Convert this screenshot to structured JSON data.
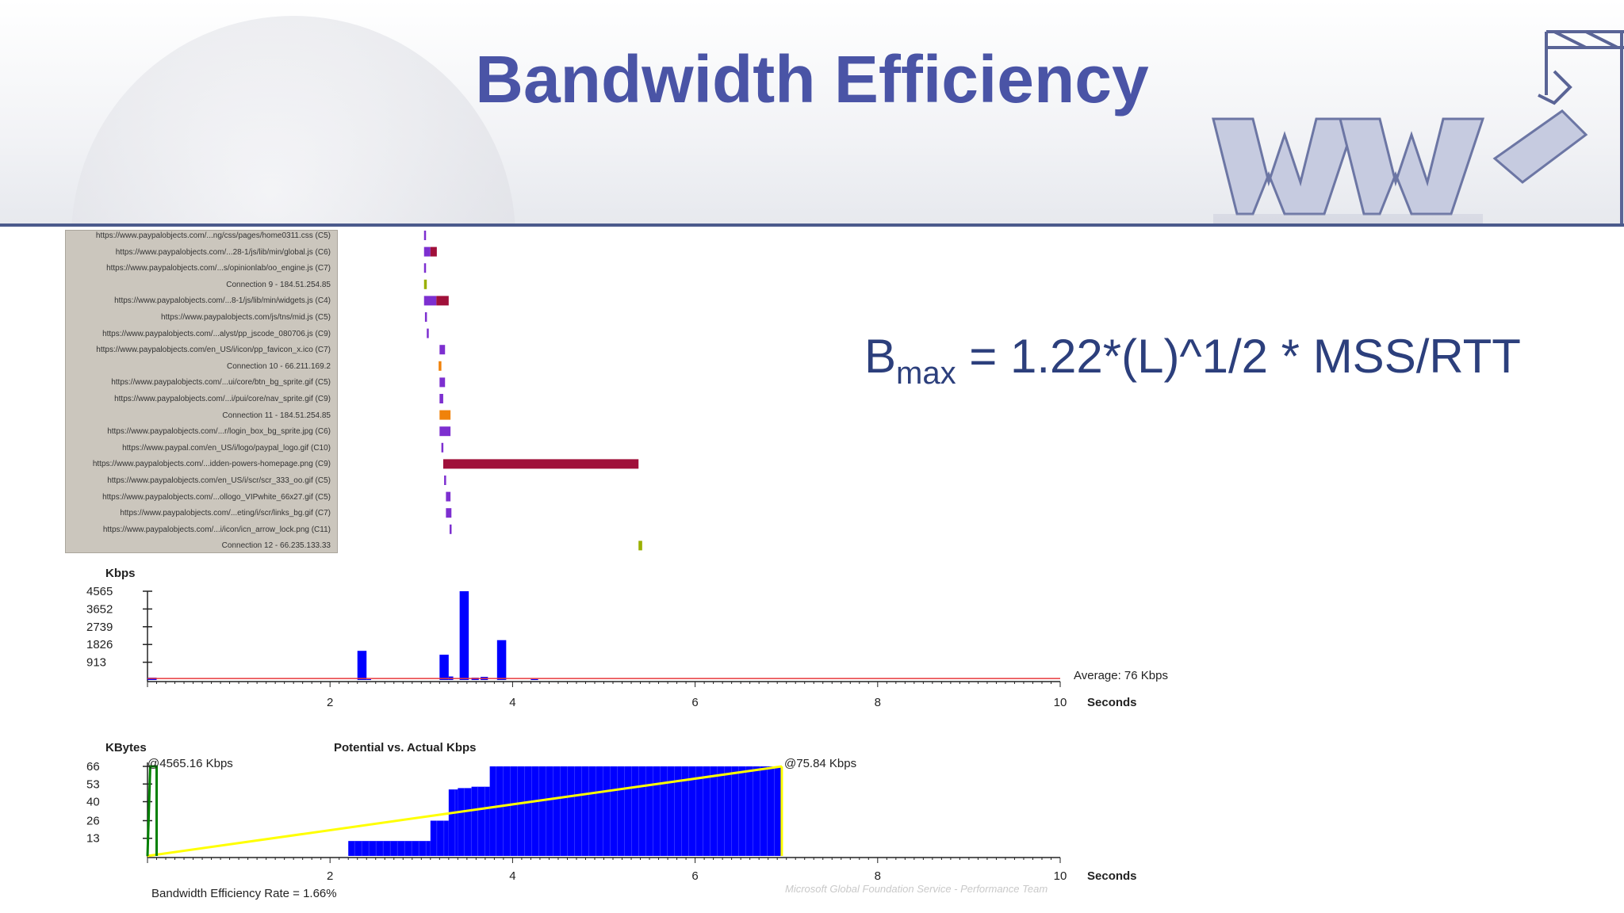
{
  "title": "Bandwidth Efficiency",
  "formula": {
    "base": "B",
    "subscript": "max",
    "rest": " = 1.22*(L)^1/2 * MSS/RTT"
  },
  "footer_note": "Microsoft Global Foundation Service - Performance Team",
  "colors": {
    "title": "#4a54a6",
    "bar": "#0000ff",
    "average_line": "#e8383b",
    "potential_line": "#ffff00",
    "actual_line": "#008000",
    "formula": "#2c3f7c"
  },
  "chart_data": [
    {
      "type": "bar",
      "subtype": "waterfall",
      "x_unit": "Seconds",
      "rows": [
        {
          "label": "https://www.paypalobjects.com/...ng/css/pages/home0311.css (C5)",
          "start": 3.03,
          "end": 3.05,
          "color": "#7d2fd0"
        },
        {
          "label": "https://www.paypalobjects.com/...28-1/js/lib/min/global.js (C6)",
          "start": 3.03,
          "end": 3.17,
          "color": "#7d2fd0",
          "color2": "#a0103a"
        },
        {
          "label": "https://www.paypalobjects.com/...s/opinionlab/oo_engine.js (C7)",
          "start": 3.03,
          "end": 3.04,
          "color": "#7d2fd0"
        },
        {
          "label": "Connection 9 - 184.51.254.85",
          "start": 3.03,
          "end": 3.06,
          "color": "#9ab000"
        },
        {
          "label": "https://www.paypalobjects.com/...8-1/js/lib/min/widgets.js (C4)",
          "start": 3.03,
          "end": 3.3,
          "color": "#7d2fd0",
          "color2": "#a0103a"
        },
        {
          "label": "https://www.paypalobjects.com/js/tns/mid.js (C5)",
          "start": 3.04,
          "end": 3.06,
          "color": "#7d2fd0"
        },
        {
          "label": "https://www.paypalobjects.com/...alyst/pp_jscode_080706.js (C9)",
          "start": 3.06,
          "end": 3.08,
          "color": "#7d2fd0"
        },
        {
          "label": "https://www.paypalobjects.com/en_US/i/icon/pp_favicon_x.ico (C7)",
          "start": 3.2,
          "end": 3.26,
          "color": "#7d2fd0"
        },
        {
          "label": "Connection 10 - 66.211.169.2",
          "start": 3.19,
          "end": 3.22,
          "color": "#f0820a"
        },
        {
          "label": "https://www.paypalobjects.com/...ui/core/btn_bg_sprite.gif (C5)",
          "start": 3.2,
          "end": 3.26,
          "color": "#7d2fd0"
        },
        {
          "label": "https://www.paypalobjects.com/...i/pui/core/nav_sprite.gif (C9)",
          "start": 3.2,
          "end": 3.24,
          "color": "#7d2fd0"
        },
        {
          "label": "Connection 11 - 184.51.254.85",
          "start": 3.2,
          "end": 3.32,
          "color": "#f0820a"
        },
        {
          "label": "https://www.paypalobjects.com/...r/login_box_bg_sprite.jpg (C6)",
          "start": 3.2,
          "end": 3.32,
          "color": "#7d2fd0"
        },
        {
          "label": "https://www.paypal.com/en_US/i/logo/paypal_logo.gif (C10)",
          "start": 3.22,
          "end": 3.24,
          "color": "#7d2fd0"
        },
        {
          "label": "https://www.paypalobjects.com/...idden-powers-homepage.png (C9)",
          "start": 3.24,
          "end": 5.38,
          "color": "#a0103a"
        },
        {
          "label": "https://www.paypalobjects.com/en_US/i/scr/scr_333_oo.gif (C5)",
          "start": 3.25,
          "end": 3.27,
          "color": "#7d2fd0"
        },
        {
          "label": "https://www.paypalobjects.com/...ollogo_VIPwhite_66x27.gif (C5)",
          "start": 3.27,
          "end": 3.32,
          "color": "#7d2fd0"
        },
        {
          "label": "https://www.paypalobjects.com/...eting/i/scr/links_bg.gif (C7)",
          "start": 3.27,
          "end": 3.33,
          "color": "#7d2fd0"
        },
        {
          "label": "https://www.paypalobjects.com/...i/icon/icn_arrow_lock.png (C11)",
          "start": 3.31,
          "end": 3.33,
          "color": "#7d2fd0"
        },
        {
          "label": "Connection 12 - 66.235.133.33",
          "start": 5.38,
          "end": 5.42,
          "color": "#9ab000"
        }
      ]
    },
    {
      "type": "bar",
      "ylabel": "Kbps",
      "xlabel": "Seconds",
      "ylim": [
        0,
        4565
      ],
      "xlim": [
        0,
        10
      ],
      "yticks": [
        "4565",
        "3652",
        "2739",
        "1826",
        "913"
      ],
      "ytick_values": [
        4565,
        3652,
        2739,
        1826,
        913
      ],
      "xticks": [
        "2",
        "4",
        "6",
        "8",
        "10"
      ],
      "xtick_values": [
        2,
        4,
        6,
        8,
        10
      ],
      "average_label": "Average: 76 Kbps",
      "average_value": 76,
      "bars": [
        {
          "x": 0.0,
          "width": 0.1,
          "value": 120
        },
        {
          "x": 2.3,
          "width": 0.1,
          "value": 1500
        },
        {
          "x": 2.4,
          "width": 0.05,
          "value": 40
        },
        {
          "x": 3.2,
          "width": 0.1,
          "value": 1300
        },
        {
          "x": 3.3,
          "width": 0.05,
          "value": 180
        },
        {
          "x": 3.42,
          "width": 0.1,
          "value": 4565
        },
        {
          "x": 3.55,
          "width": 0.08,
          "value": 120
        },
        {
          "x": 3.65,
          "width": 0.08,
          "value": 160
        },
        {
          "x": 3.83,
          "width": 0.1,
          "value": 2050
        },
        {
          "x": 4.2,
          "width": 0.08,
          "value": 50
        }
      ]
    },
    {
      "type": "area",
      "title": "Potential vs. Actual Kbps",
      "ylabel": "KBytes",
      "xlabel": "Seconds",
      "ylim": [
        0,
        66
      ],
      "xlim": [
        0,
        10
      ],
      "yticks": [
        "66",
        "53",
        "40",
        "26",
        "13"
      ],
      "ytick_values": [
        66,
        53,
        40,
        26,
        13
      ],
      "xticks": [
        "2",
        "4",
        "6",
        "8",
        "10"
      ],
      "xtick_values": [
        2,
        4,
        6,
        8,
        10
      ],
      "annotations": [
        "@4565.16 Kbps",
        "@75.84 Kbps"
      ],
      "footer_label": "Bandwidth Efficiency Rate = 1.66%",
      "cumulative_steps": [
        {
          "x0": 2.2,
          "x1": 3.1,
          "value": 11
        },
        {
          "x0": 3.1,
          "x1": 3.3,
          "value": 26
        },
        {
          "x0": 3.3,
          "x1": 3.4,
          "value": 49
        },
        {
          "x0": 3.4,
          "x1": 3.55,
          "value": 50
        },
        {
          "x0": 3.55,
          "x1": 3.75,
          "value": 51
        },
        {
          "x0": 3.75,
          "x1": 6.95,
          "value": 66
        }
      ],
      "potential_line": {
        "x0": 0.03,
        "x1": 0.1,
        "y0": 0,
        "y1": 66
      },
      "actual_line": {
        "x0": 0.0,
        "x1": 6.95,
        "y0": 0,
        "y1": 66
      },
      "actual_end_drop": 6.95
    }
  ]
}
